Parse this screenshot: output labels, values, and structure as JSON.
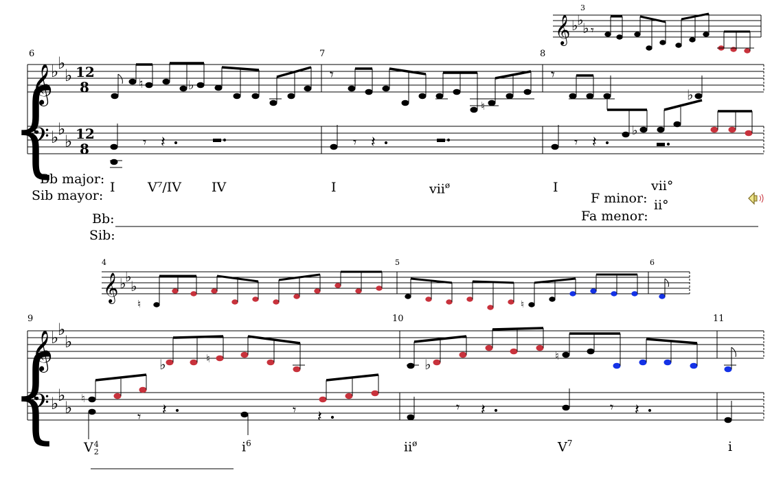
{
  "measures": {
    "top_small": "3",
    "s1_first": "6",
    "s1_second": "7",
    "s1_third": "8",
    "mid_small_a": "4",
    "mid_small_b": "5",
    "mid_small_c": "6",
    "s2_first": "9",
    "s2_second": "10",
    "s2_third": "11"
  },
  "time_signature": {
    "top": "12",
    "bottom": "8"
  },
  "key_labels": {
    "bb_major": "Bb major:",
    "sib_mayor": "Sib mayor:",
    "f_minor": "F minor:",
    "fa_menor": "Fa menor:",
    "bb_short": "Bb:",
    "sib_short": "Sib:"
  },
  "analysis_row1": {
    "c1": "I",
    "c2": "V⁷/IV",
    "c3": "IV",
    "c4": "I",
    "c5": "vii",
    "c5_sup": "ø",
    "c6": "I",
    "c7": "vii°",
    "c8": "ii°"
  },
  "analysis_row2": {
    "c1": "V",
    "c1_sup": "4",
    "c1_sub": "2",
    "c2": "i",
    "c2_sup": "6",
    "c3": "ii",
    "c3_sup": "ø",
    "c4": "V",
    "c4_sup": "7",
    "c5": "i"
  },
  "colors": {
    "highlight_red": "#c8323c",
    "highlight_blue": "#1432e6",
    "ink": "#000000"
  },
  "icons": {
    "audio": "speaker-icon"
  }
}
